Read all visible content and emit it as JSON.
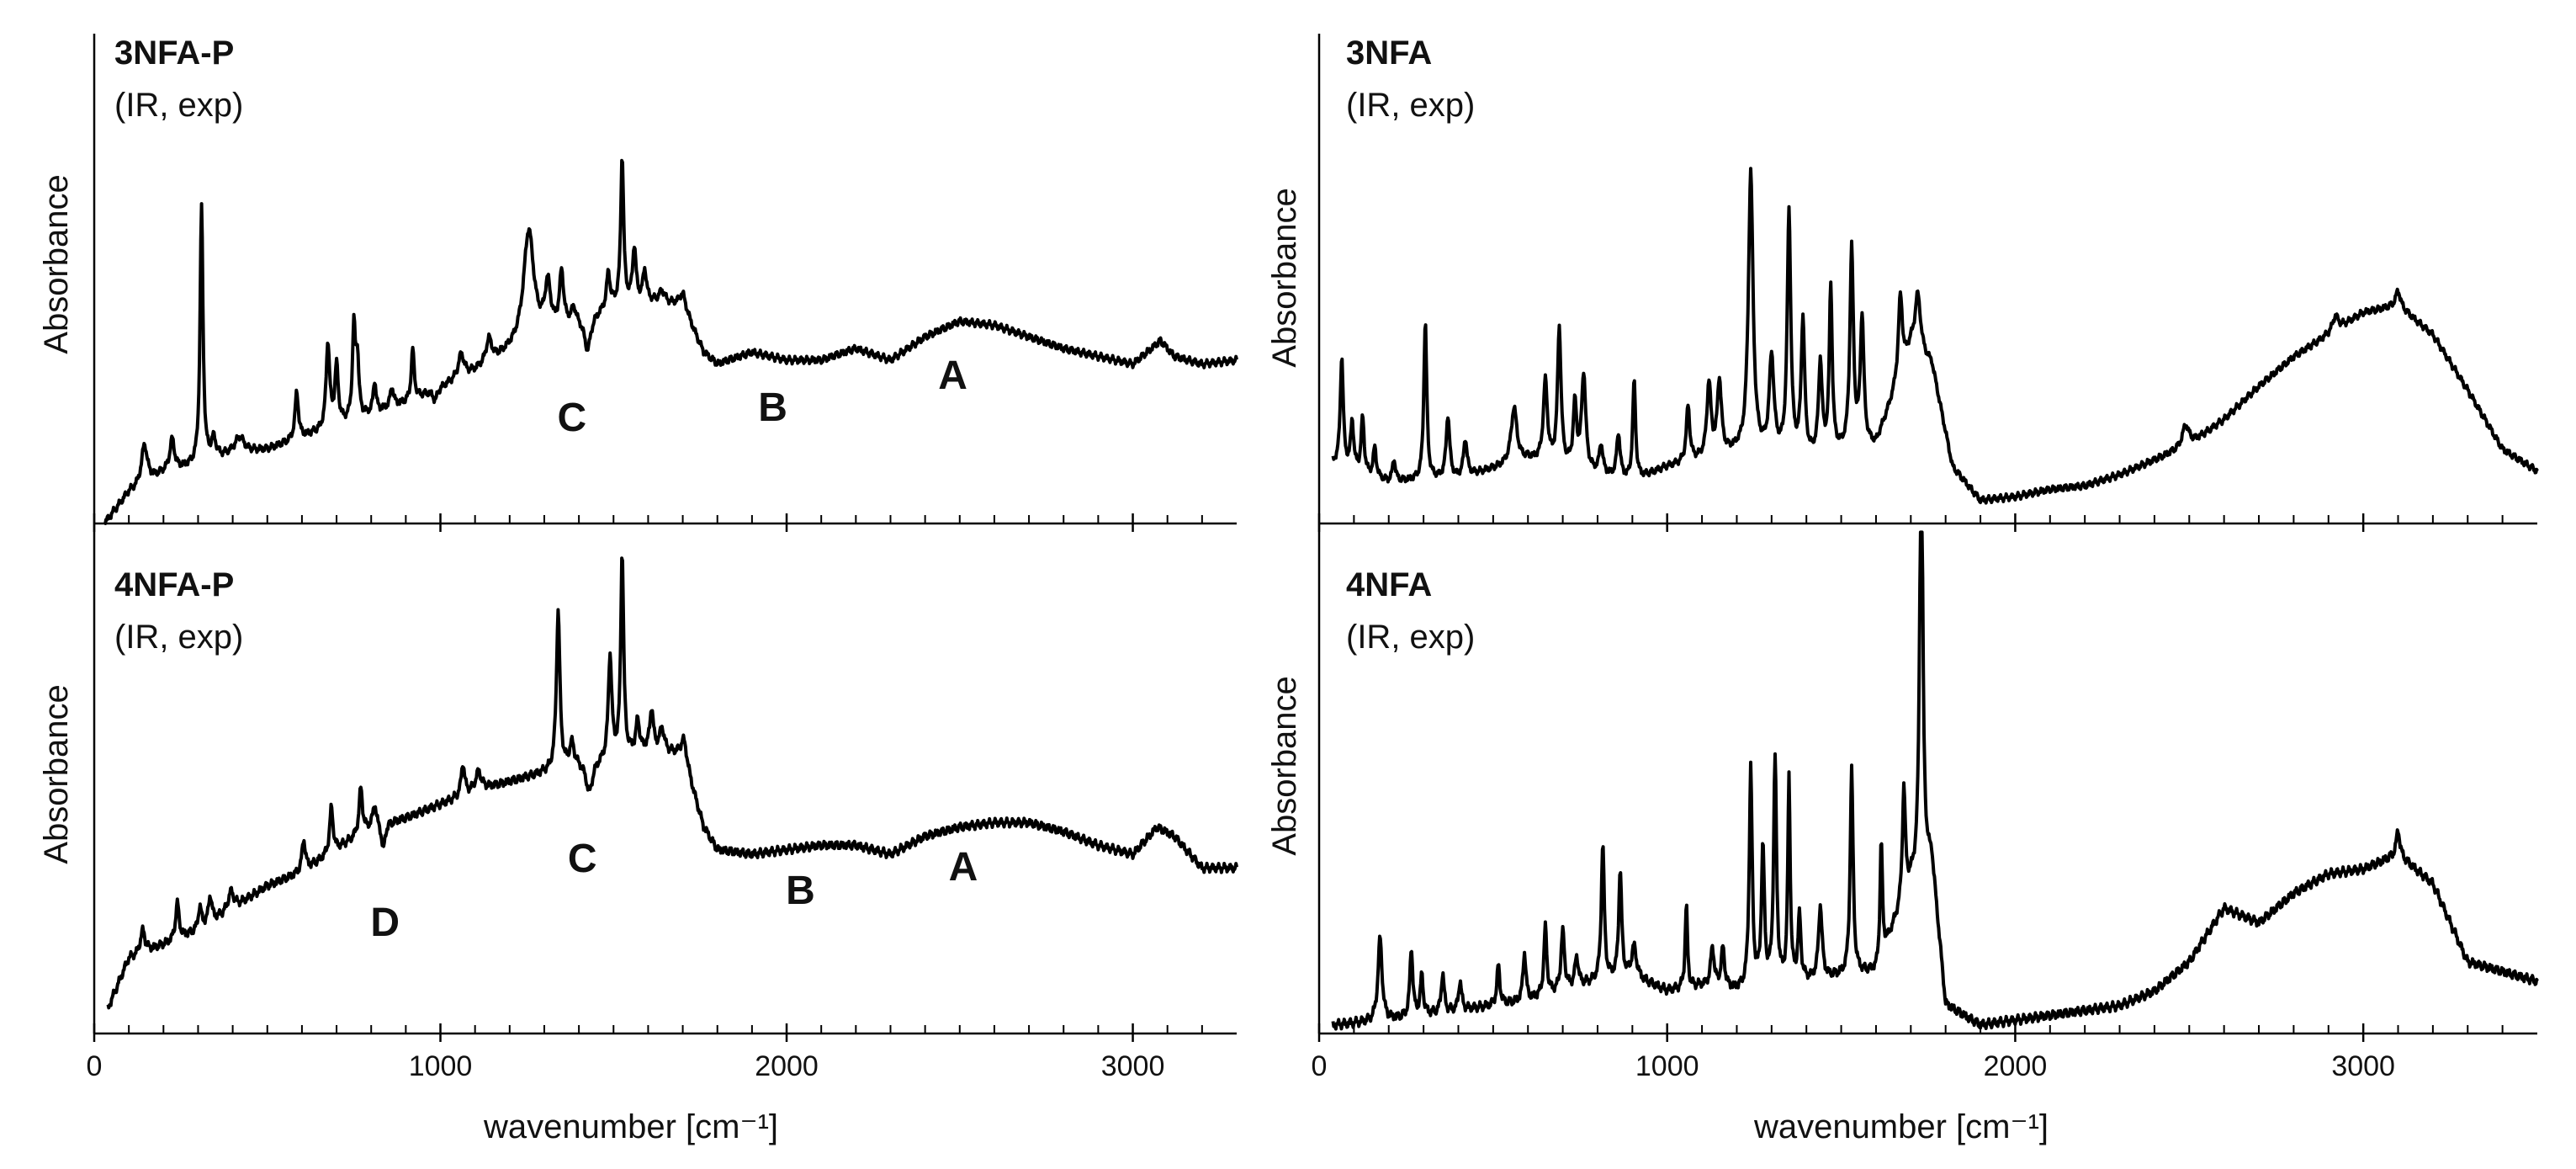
{
  "figure": {
    "colors": {
      "line": "#000000",
      "axis": "#000000",
      "background": "#ffffff"
    }
  },
  "chart_data": [
    {
      "id": "3NFA-P",
      "type": "line",
      "title": "3NFA-P",
      "subtitle": "(IR, exp)",
      "xlabel": "wavenumber [cm⁻¹]",
      "ylabel": "Absorbance",
      "xlim": [
        0,
        3300
      ],
      "ylim": [
        0,
        1
      ],
      "xticks": [
        0,
        1000,
        2000,
        3000
      ],
      "xtick_labels": [
        "",
        "",
        "",
        ""
      ],
      "grid": false,
      "baseline": [
        [
          30,
          0.0
        ],
        [
          100,
          0.08
        ],
        [
          200,
          0.13
        ],
        [
          300,
          0.15
        ],
        [
          400,
          0.18
        ],
        [
          500,
          0.19
        ],
        [
          600,
          0.22
        ],
        [
          700,
          0.25
        ],
        [
          800,
          0.28
        ],
        [
          900,
          0.31
        ],
        [
          1000,
          0.35
        ],
        [
          1100,
          0.39
        ],
        [
          1200,
          0.44
        ],
        [
          1300,
          0.48
        ],
        [
          1400,
          0.52
        ],
        [
          1500,
          0.56
        ],
        [
          1600,
          0.57
        ],
        [
          1700,
          0.56
        ],
        [
          1760,
          0.44
        ],
        [
          1800,
          0.41
        ],
        [
          1900,
          0.44
        ],
        [
          2000,
          0.42
        ],
        [
          2100,
          0.42
        ],
        [
          2200,
          0.45
        ],
        [
          2300,
          0.42
        ],
        [
          2400,
          0.48
        ],
        [
          2500,
          0.52
        ],
        [
          2600,
          0.51
        ],
        [
          2700,
          0.48
        ],
        [
          2800,
          0.45
        ],
        [
          2900,
          0.43
        ],
        [
          3000,
          0.41
        ],
        [
          3080,
          0.47
        ],
        [
          3120,
          0.43
        ],
        [
          3200,
          0.41
        ],
        [
          3300,
          0.42
        ]
      ],
      "peaks": [
        [
          145,
          0.1,
          10
        ],
        [
          225,
          0.08,
          8
        ],
        [
          310,
          0.66,
          5
        ],
        [
          345,
          0.05,
          8
        ],
        [
          420,
          0.04,
          15
        ],
        [
          585,
          0.12,
          6
        ],
        [
          675,
          0.22,
          6
        ],
        [
          700,
          0.15,
          6
        ],
        [
          750,
          0.23,
          5
        ],
        [
          760,
          0.15,
          5
        ],
        [
          810,
          0.08,
          5
        ],
        [
          860,
          0.05,
          6
        ],
        [
          920,
          0.13,
          5
        ],
        [
          1060,
          0.06,
          10
        ],
        [
          1140,
          0.06,
          10
        ],
        [
          1255,
          0.29,
          18
        ],
        [
          1310,
          0.12,
          10
        ],
        [
          1350,
          0.14,
          7
        ],
        [
          1385,
          0.04,
          8
        ],
        [
          1485,
          0.09,
          6
        ],
        [
          1525,
          0.38,
          5
        ],
        [
          1560,
          0.14,
          6
        ],
        [
          1590,
          0.08,
          6
        ],
        [
          1640,
          0.03,
          10
        ],
        [
          1700,
          0.03,
          12
        ]
      ],
      "dips": [
        [
          985,
          0.03,
          8
        ],
        [
          1425,
          0.09,
          12
        ]
      ],
      "annotations": [
        {
          "label": "C",
          "x": 1380
        },
        {
          "label": "B",
          "x": 1960
        },
        {
          "label": "A",
          "x": 2480
        }
      ]
    },
    {
      "id": "4NFA-P",
      "type": "line",
      "title": "4NFA-P",
      "subtitle": "(IR, exp)",
      "xlabel": "wavenumber [cm⁻¹]",
      "ylabel": "Absorbance",
      "xlim": [
        0,
        3300
      ],
      "ylim": [
        0,
        1
      ],
      "xticks": [
        0,
        1000,
        2000,
        3000
      ],
      "xtick_labels": [
        "0",
        "1000",
        "2000",
        "3000"
      ],
      "grid": false,
      "baseline": [
        [
          40,
          0.0
        ],
        [
          100,
          0.11
        ],
        [
          200,
          0.14
        ],
        [
          300,
          0.17
        ],
        [
          400,
          0.22
        ],
        [
          500,
          0.27
        ],
        [
          600,
          0.3
        ],
        [
          700,
          0.35
        ],
        [
          800,
          0.4
        ],
        [
          900,
          0.42
        ],
        [
          1000,
          0.45
        ],
        [
          1100,
          0.48
        ],
        [
          1200,
          0.5
        ],
        [
          1300,
          0.52
        ],
        [
          1400,
          0.54
        ],
        [
          1500,
          0.55
        ],
        [
          1600,
          0.57
        ],
        [
          1700,
          0.56
        ],
        [
          1760,
          0.4
        ],
        [
          1800,
          0.35
        ],
        [
          1900,
          0.34
        ],
        [
          2000,
          0.35
        ],
        [
          2100,
          0.36
        ],
        [
          2200,
          0.36
        ],
        [
          2300,
          0.34
        ],
        [
          2400,
          0.38
        ],
        [
          2500,
          0.4
        ],
        [
          2600,
          0.41
        ],
        [
          2700,
          0.41
        ],
        [
          2800,
          0.39
        ],
        [
          2900,
          0.36
        ],
        [
          3000,
          0.34
        ],
        [
          3070,
          0.4
        ],
        [
          3120,
          0.38
        ],
        [
          3200,
          0.31
        ],
        [
          3300,
          0.31
        ]
      ],
      "peaks": [
        [
          140,
          0.05,
          8
        ],
        [
          240,
          0.08,
          6
        ],
        [
          305,
          0.05,
          6
        ],
        [
          335,
          0.06,
          6
        ],
        [
          395,
          0.04,
          10
        ],
        [
          605,
          0.07,
          6
        ],
        [
          685,
          0.1,
          6
        ],
        [
          770,
          0.1,
          6
        ],
        [
          810,
          0.05,
          6
        ],
        [
          1065,
          0.07,
          6
        ],
        [
          1110,
          0.04,
          10
        ],
        [
          1340,
          0.35,
          6
        ],
        [
          1380,
          0.05,
          8
        ],
        [
          1490,
          0.23,
          6
        ],
        [
          1525,
          0.45,
          5
        ],
        [
          1570,
          0.07,
          6
        ],
        [
          1610,
          0.09,
          6
        ],
        [
          1640,
          0.05,
          8
        ],
        [
          1705,
          0.04,
          10
        ]
      ],
      "dips": [
        [
          835,
          0.06,
          6
        ],
        [
          1430,
          0.07,
          12
        ]
      ],
      "annotations": [
        {
          "label": "D",
          "x": 840
        },
        {
          "label": "C",
          "x": 1410
        },
        {
          "label": "B",
          "x": 2040
        },
        {
          "label": "A",
          "x": 2510
        }
      ]
    },
    {
      "id": "3NFA",
      "type": "line",
      "title": "3NFA",
      "subtitle": "(IR, exp)",
      "xlabel": "wavenumber [cm⁻¹]",
      "ylabel": "Absorbance",
      "xlim": [
        0,
        3500
      ],
      "ylim": [
        0,
        1
      ],
      "xticks": [
        0,
        1000,
        2000,
        3000
      ],
      "xtick_labels": [
        "",
        "",
        "",
        ""
      ],
      "grid": false,
      "baseline": [
        [
          40,
          0.13
        ],
        [
          200,
          0.08
        ],
        [
          400,
          0.09
        ],
        [
          600,
          0.14
        ],
        [
          800,
          0.1
        ],
        [
          900,
          0.08
        ],
        [
          1000,
          0.12
        ],
        [
          1200,
          0.16
        ],
        [
          1400,
          0.14
        ],
        [
          1600,
          0.18
        ],
        [
          1700,
          0.44
        ],
        [
          1760,
          0.4
        ],
        [
          1820,
          0.12
        ],
        [
          1900,
          0.03
        ],
        [
          2000,
          0.04
        ],
        [
          2100,
          0.06
        ],
        [
          2200,
          0.07
        ],
        [
          2300,
          0.1
        ],
        [
          2400,
          0.14
        ],
        [
          2500,
          0.18
        ],
        [
          2600,
          0.25
        ],
        [
          2700,
          0.34
        ],
        [
          2800,
          0.42
        ],
        [
          2900,
          0.48
        ],
        [
          3000,
          0.54
        ],
        [
          3100,
          0.56
        ],
        [
          3200,
          0.48
        ],
        [
          3300,
          0.33
        ],
        [
          3400,
          0.17
        ],
        [
          3500,
          0.11
        ]
      ],
      "peaks": [
        [
          65,
          0.3,
          5
        ],
        [
          95,
          0.13,
          5
        ],
        [
          125,
          0.15,
          5
        ],
        [
          160,
          0.08,
          5
        ],
        [
          215,
          0.06,
          5
        ],
        [
          305,
          0.43,
          5
        ],
        [
          370,
          0.17,
          6
        ],
        [
          420,
          0.1,
          6
        ],
        [
          560,
          0.15,
          10
        ],
        [
          650,
          0.22,
          7
        ],
        [
          690,
          0.37,
          6
        ],
        [
          735,
          0.17,
          6
        ],
        [
          760,
          0.26,
          7
        ],
        [
          810,
          0.08,
          6
        ],
        [
          860,
          0.12,
          6
        ],
        [
          905,
          0.27,
          5
        ],
        [
          1060,
          0.15,
          6
        ],
        [
          1120,
          0.2,
          7
        ],
        [
          1150,
          0.2,
          7
        ],
        [
          1240,
          0.76,
          8
        ],
        [
          1300,
          0.26,
          8
        ],
        [
          1350,
          0.66,
          6
        ],
        [
          1390,
          0.37,
          6
        ],
        [
          1440,
          0.25,
          6
        ],
        [
          1470,
          0.45,
          5
        ],
        [
          1530,
          0.54,
          6
        ],
        [
          1560,
          0.35,
          6
        ],
        [
          1670,
          0.22,
          7
        ],
        [
          1720,
          0.16,
          10
        ],
        [
          2490,
          0.06,
          12
        ],
        [
          2920,
          0.04,
          10
        ],
        [
          3100,
          0.04,
          8
        ]
      ],
      "dips": [],
      "annotations": []
    },
    {
      "id": "4NFA",
      "type": "line",
      "title": "4NFA",
      "subtitle": "(IR, exp)",
      "xlabel": "wavenumber [cm⁻¹]",
      "ylabel": "Absorbance",
      "xlim": [
        0,
        3500
      ],
      "ylim": [
        0,
        1
      ],
      "xticks": [
        0,
        1000,
        2000,
        3000
      ],
      "xtick_labels": [
        "0",
        "1000",
        "2000",
        "3000"
      ],
      "grid": false,
      "baseline": [
        [
          40,
          0.01
        ],
        [
          200,
          0.02
        ],
        [
          400,
          0.04
        ],
        [
          600,
          0.06
        ],
        [
          800,
          0.1
        ],
        [
          900,
          0.11
        ],
        [
          1000,
          0.08
        ],
        [
          1100,
          0.09
        ],
        [
          1200,
          0.08
        ],
        [
          1400,
          0.1
        ],
        [
          1600,
          0.12
        ],
        [
          1700,
          0.3
        ],
        [
          1760,
          0.35
        ],
        [
          1800,
          0.05
        ],
        [
          1900,
          0.01
        ],
        [
          2000,
          0.02
        ],
        [
          2100,
          0.03
        ],
        [
          2200,
          0.04
        ],
        [
          2300,
          0.05
        ],
        [
          2400,
          0.08
        ],
        [
          2500,
          0.14
        ],
        [
          2600,
          0.25
        ],
        [
          2700,
          0.22
        ],
        [
          2800,
          0.28
        ],
        [
          2900,
          0.32
        ],
        [
          3000,
          0.33
        ],
        [
          3100,
          0.36
        ],
        [
          3200,
          0.3
        ],
        [
          3300,
          0.14
        ],
        [
          3400,
          0.12
        ],
        [
          3500,
          0.1
        ]
      ],
      "peaks": [
        [
          175,
          0.17,
          7
        ],
        [
          265,
          0.14,
          5
        ],
        [
          295,
          0.08,
          5
        ],
        [
          355,
          0.08,
          5
        ],
        [
          405,
          0.06,
          5
        ],
        [
          515,
          0.08,
          5
        ],
        [
          590,
          0.1,
          5
        ],
        [
          650,
          0.14,
          5
        ],
        [
          700,
          0.12,
          6
        ],
        [
          740,
          0.06,
          6
        ],
        [
          815,
          0.28,
          5
        ],
        [
          865,
          0.22,
          5
        ],
        [
          905,
          0.06,
          8
        ],
        [
          1055,
          0.17,
          4
        ],
        [
          1130,
          0.08,
          6
        ],
        [
          1160,
          0.08,
          6
        ],
        [
          1240,
          0.45,
          5
        ],
        [
          1275,
          0.28,
          5
        ],
        [
          1310,
          0.46,
          5
        ],
        [
          1350,
          0.42,
          4
        ],
        [
          1380,
          0.13,
          5
        ],
        [
          1440,
          0.15,
          6
        ],
        [
          1530,
          0.42,
          5
        ],
        [
          1615,
          0.24,
          4
        ],
        [
          1680,
          0.23,
          5
        ],
        [
          1730,
          0.97,
          5
        ],
        [
          3100,
          0.05,
          6
        ]
      ],
      "dips": [],
      "annotations": []
    }
  ]
}
